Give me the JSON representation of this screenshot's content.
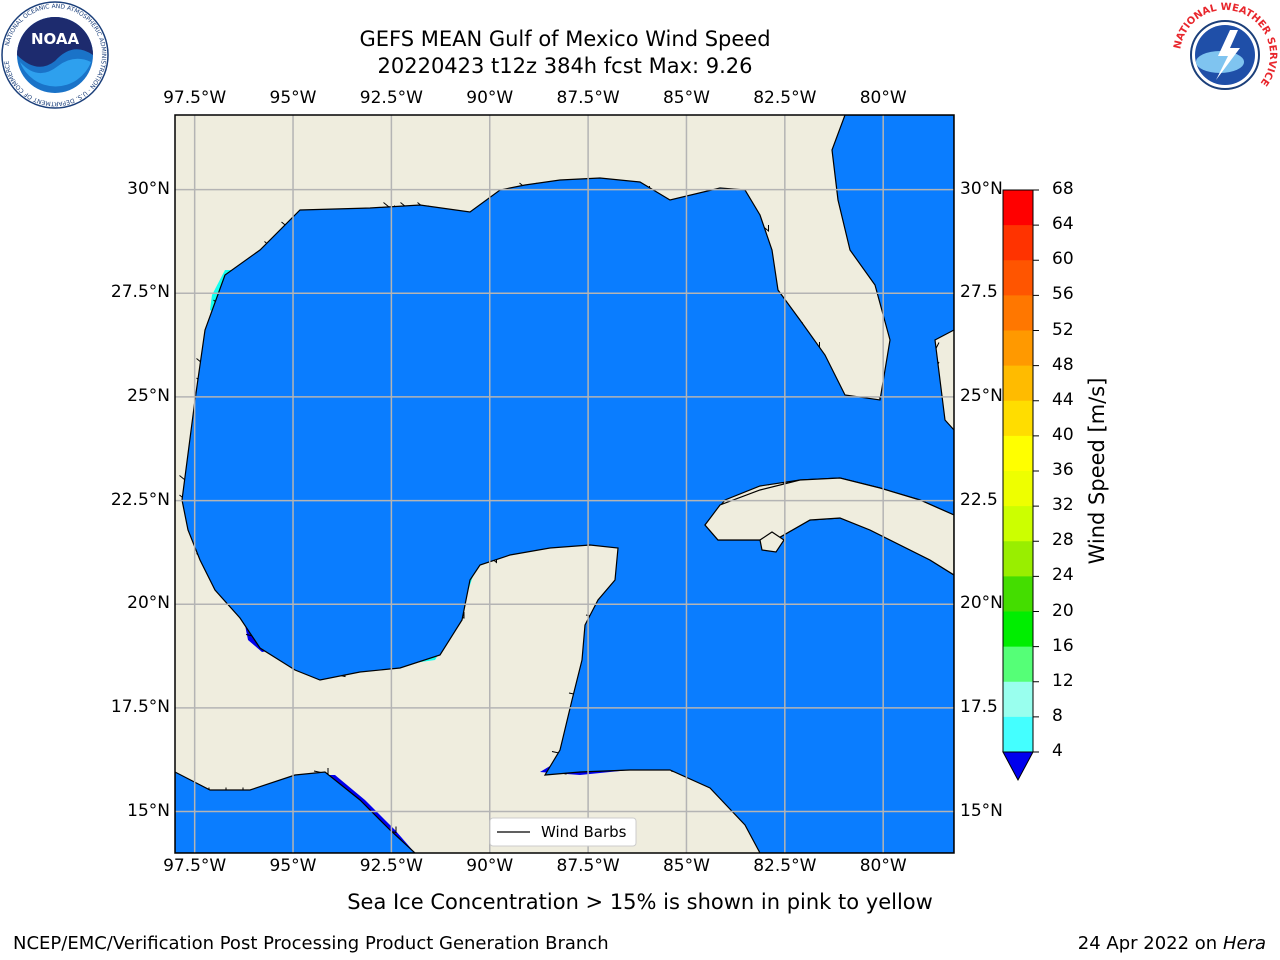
{
  "title_line1": "GEFS MEAN Gulf of Mexico Wind Speed",
  "title_line2": "20220423 t12z 384h fcst   Max: 9.26",
  "lon_ticks": [
    "97.5°W",
    "95°W",
    "92.5°W",
    "90°W",
    "87.5°W",
    "85°W",
    "82.5°W",
    "80°W"
  ],
  "lat_ticks_left": [
    "30°N",
    "27.5°N",
    "25°N",
    "22.5°N",
    "20°N",
    "17.5°N",
    "15°N"
  ],
  "lat_ticks_right": [
    "30°N",
    "27.5",
    "25°N",
    "22.5",
    "20°N",
    "17.5",
    "15°N"
  ],
  "legend_label": "Wind Barbs",
  "colorbar": {
    "label": "Wind Speed [m/s]",
    "ticks": [
      "68",
      "64",
      "60",
      "56",
      "52",
      "48",
      "44",
      "40",
      "36",
      "32",
      "28",
      "24",
      "20",
      "16",
      "12",
      "8",
      "4"
    ],
    "colors": [
      "#ff0000",
      "#ff3300",
      "#ff5500",
      "#ff7700",
      "#ff9900",
      "#ffbb00",
      "#ffdd00",
      "#ffff00",
      "#eeff00",
      "#ccff00",
      "#99ee00",
      "#44dd00",
      "#00ee00",
      "#55ff77",
      "#99ffee",
      "#44ffff",
      "#00ffee",
      "#0077ff"
    ],
    "under_color": "#0000ee"
  },
  "map": {
    "extent": {
      "lon_min": -98,
      "lon_max": -78.2,
      "lat_min": 14,
      "lat_max": 31.8
    },
    "land_color": "#efedde",
    "ocean_color": "#0a7dff",
    "high_wind_color": "#14fff0"
  },
  "bottom_note": "Sea Ice Concentration > 15% is shown in pink to yellow",
  "footer_left": "NCEP/EMC/Verification Post Processing Product Generation Branch",
  "footer_right_date": "24 Apr 2022 on",
  "footer_right_host": "Hera",
  "logos": {
    "noaa_text": "NOAA",
    "noaa_ring": "NATIONAL OCEANIC AND ATMOSPHERIC ADMINISTRATION · U.S. DEPARTMENT OF COMMERCE",
    "nws_ring": "NATIONAL WEATHER SERVICE"
  }
}
